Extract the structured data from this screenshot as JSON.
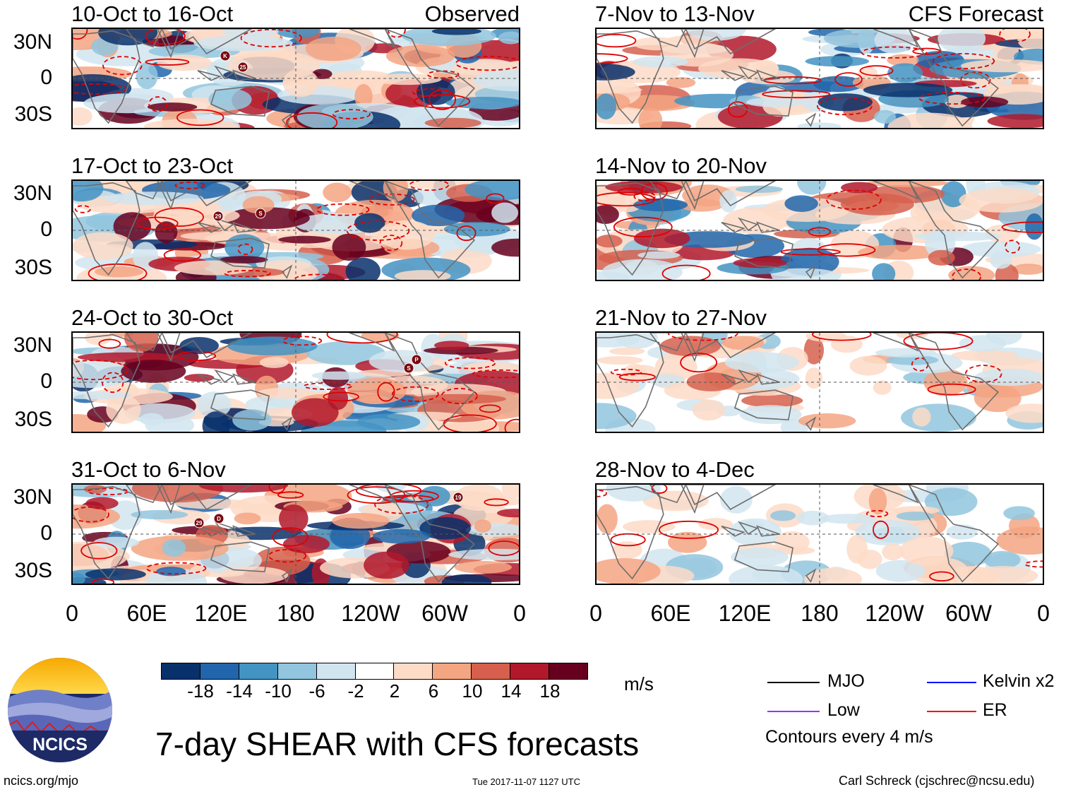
{
  "header": {
    "left_column_label": "Observed",
    "right_column_label": "CFS Forecast"
  },
  "panels": {
    "observed": [
      {
        "title": "10-Oct to 16-Oct"
      },
      {
        "title": "17-Oct to 23-Oct"
      },
      {
        "title": "24-Oct to 30-Oct"
      },
      {
        "title": "31-Oct to 6-Nov"
      }
    ],
    "forecast": [
      {
        "title": "7-Nov to 13-Nov"
      },
      {
        "title": "14-Nov to 20-Nov"
      },
      {
        "title": "21-Nov to 27-Nov"
      },
      {
        "title": "28-Nov to 4-Dec"
      }
    ]
  },
  "lat_labels": [
    "30N",
    "0",
    "30S"
  ],
  "lon_labels": [
    "0",
    "60E",
    "120E",
    "180",
    "120W",
    "60W",
    "0"
  ],
  "storm_markers": {
    "p0": [
      "K",
      "25"
    ],
    "p1": [
      "29",
      "S"
    ],
    "p2": [
      "P",
      "S"
    ],
    "p3": [
      "29",
      "D",
      "19"
    ]
  },
  "colorbar": {
    "ticks": [
      "-18",
      "-14",
      "-10",
      "-6",
      "-2",
      "2",
      "6",
      "10",
      "14",
      "18"
    ],
    "colors": [
      "#08306b",
      "#2166ac",
      "#4393c3",
      "#92c5de",
      "#d1e5f0",
      "#ffffff",
      "#fddbc7",
      "#f4a582",
      "#d6604d",
      "#b2182b",
      "#67001f"
    ],
    "units": "m/s"
  },
  "legend": {
    "items": [
      {
        "label": "MJO",
        "color": "#000000"
      },
      {
        "label": "Kelvin x2",
        "color": "#0000ff"
      },
      {
        "label": "Low",
        "color": "#9b30ff"
      },
      {
        "label": "ER",
        "color": "#ff0000"
      }
    ],
    "note": "Contours every 4 m/s"
  },
  "logo": {
    "text": "NCICS"
  },
  "main_title": "7-day SHEAR with CFS forecasts",
  "footer": {
    "url": "ncics.org/mjo",
    "timestamp": "Tue 2017-11-07 1127 UTC",
    "credit": "Carl Schreck (cjschrec@ncsu.edu)"
  }
}
